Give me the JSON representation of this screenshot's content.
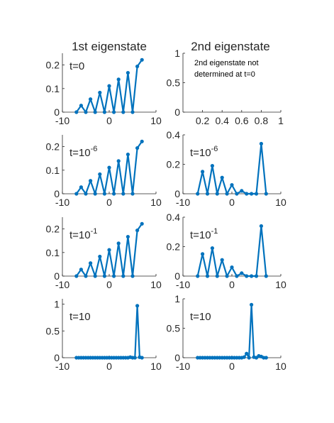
{
  "figure": {
    "col_titles": [
      "1st eigenstate",
      "2nd eigenstate"
    ],
    "series_color": "#0072BD"
  },
  "chart_data": [
    {
      "panel": "r0c0",
      "type": "line",
      "marker": "dot",
      "xlim": [
        -10,
        10
      ],
      "ylim": [
        0,
        0.25
      ],
      "xticks": [
        "-10",
        "0",
        "10"
      ],
      "yticks": [
        {
          "v": 0,
          "l": "0"
        },
        {
          "v": 0.1,
          "l": "0.1"
        },
        {
          "v": 0.2,
          "l": "0.2"
        }
      ],
      "annotation": {
        "text": "t=0",
        "sup": ""
      },
      "x": [
        -7,
        -6,
        -5,
        -4,
        -3,
        -2,
        -1,
        0,
        1,
        2,
        3,
        4,
        5,
        6,
        7
      ],
      "y": [
        0,
        0.028,
        0,
        0.055,
        0,
        0.083,
        0,
        0.111,
        0,
        0.139,
        0,
        0.167,
        0,
        0.194,
        0.222
      ]
    },
    {
      "panel": "r0c1",
      "type": "empty",
      "xlim": [
        0,
        1
      ],
      "ylim": [
        0,
        1
      ],
      "xticks": [
        "0.2",
        "0.4",
        "0.6",
        "0.8",
        "1"
      ],
      "yticks": [
        {
          "v": 0,
          "l": "0"
        },
        {
          "v": 0.5,
          "l": "0.5"
        },
        {
          "v": 1,
          "l": "1"
        }
      ],
      "note": [
        "2nd eigenstate not",
        "determined at t=0"
      ]
    },
    {
      "panel": "r1c0",
      "type": "line",
      "marker": "dot",
      "xlim": [
        -10,
        10
      ],
      "ylim": [
        0,
        0.25
      ],
      "xticks": [
        "-10",
        "0",
        "10"
      ],
      "yticks": [
        {
          "v": 0,
          "l": "0"
        },
        {
          "v": 0.1,
          "l": "0.1"
        },
        {
          "v": 0.2,
          "l": "0.2"
        }
      ],
      "annotation": {
        "text": "t=10",
        "sup": "-6"
      },
      "x": [
        -7,
        -6,
        -5,
        -4,
        -3,
        -2,
        -1,
        0,
        1,
        2,
        3,
        4,
        5,
        6,
        7
      ],
      "y": [
        0,
        0.028,
        0,
        0.055,
        0,
        0.083,
        0,
        0.111,
        0,
        0.139,
        0,
        0.167,
        0,
        0.194,
        0.222
      ]
    },
    {
      "panel": "r1c1",
      "type": "line",
      "marker": "dot",
      "xlim": [
        -10,
        10
      ],
      "ylim": [
        0,
        0.4
      ],
      "xticks": [
        "-10",
        "0",
        "10"
      ],
      "yticks": [
        {
          "v": 0,
          "l": "0"
        },
        {
          "v": 0.2,
          "l": "0.2"
        },
        {
          "v": 0.4,
          "l": "0.4"
        }
      ],
      "annotation": {
        "text": "t=10",
        "sup": "-6"
      },
      "x": [
        -7,
        -6,
        -5,
        -4,
        -3,
        -2,
        -1,
        0,
        1,
        2,
        3,
        4,
        5,
        6,
        7
      ],
      "y": [
        0,
        0.15,
        0,
        0.19,
        0,
        0.11,
        0,
        0.06,
        0,
        0.02,
        0,
        0,
        0,
        0.34,
        0
      ]
    },
    {
      "panel": "r2c0",
      "type": "line",
      "marker": "dot",
      "xlim": [
        -10,
        10
      ],
      "ylim": [
        0,
        0.25
      ],
      "xticks": [
        "-10",
        "0",
        "10"
      ],
      "yticks": [
        {
          "v": 0,
          "l": "0"
        },
        {
          "v": 0.1,
          "l": "0.1"
        },
        {
          "v": 0.2,
          "l": "0.2"
        }
      ],
      "annotation": {
        "text": "t=10",
        "sup": "-1"
      },
      "x": [
        -7,
        -6,
        -5,
        -4,
        -3,
        -2,
        -1,
        0,
        1,
        2,
        3,
        4,
        5,
        6,
        7
      ],
      "y": [
        0,
        0.028,
        0,
        0.055,
        0,
        0.083,
        0,
        0.111,
        0,
        0.139,
        0,
        0.167,
        0,
        0.194,
        0.222
      ]
    },
    {
      "panel": "r2c1",
      "type": "line",
      "marker": "dot",
      "xlim": [
        -10,
        10
      ],
      "ylim": [
        0,
        0.4
      ],
      "xticks": [
        "-10",
        "0",
        "10"
      ],
      "yticks": [
        {
          "v": 0,
          "l": "0"
        },
        {
          "v": 0.2,
          "l": "0.2"
        },
        {
          "v": 0.4,
          "l": "0.4"
        }
      ],
      "annotation": {
        "text": "t=10",
        "sup": "-1"
      },
      "x": [
        -7,
        -6,
        -5,
        -4,
        -3,
        -2,
        -1,
        0,
        1,
        2,
        3,
        4,
        5,
        6,
        7
      ],
      "y": [
        0,
        0.15,
        0,
        0.19,
        0,
        0.11,
        0,
        0.06,
        0,
        0.02,
        0,
        0,
        0,
        0.34,
        0
      ]
    },
    {
      "panel": "r3c0",
      "type": "line",
      "marker": "dot",
      "xlim": [
        -10,
        10
      ],
      "ylim": [
        0,
        1.1
      ],
      "xticks": [
        "-10",
        "0",
        "10"
      ],
      "yticks": [
        {
          "v": 0,
          "l": "0"
        },
        {
          "v": 0.5,
          "l": "0.5"
        },
        {
          "v": 1,
          "l": "1"
        }
      ],
      "annotation": {
        "text": "t=10",
        "sup": ""
      },
      "x": [
        -7,
        -6.5,
        -6,
        -5.5,
        -5,
        -4.5,
        -4,
        -3.5,
        -3,
        -2.5,
        -2,
        -1.5,
        -1,
        -0.5,
        0,
        0.5,
        1,
        1.5,
        2,
        2.5,
        3,
        3.5,
        4,
        4.5,
        5,
        5.5,
        6,
        6.5,
        7
      ],
      "y": [
        0,
        0,
        0,
        0,
        0,
        0,
        0,
        0,
        0,
        0,
        0,
        0,
        0,
        0,
        0,
        0,
        0,
        0,
        0,
        0,
        0,
        0,
        0,
        0.01,
        0,
        0,
        0.97,
        0.01,
        0
      ]
    },
    {
      "panel": "r3c1",
      "type": "line",
      "marker": "dot",
      "xlim": [
        -10,
        10
      ],
      "ylim": [
        0,
        1
      ],
      "xticks": [
        "-10",
        "0",
        "10"
      ],
      "yticks": [
        {
          "v": 0,
          "l": "0"
        },
        {
          "v": 0.5,
          "l": "0.5"
        },
        {
          "v": 1,
          "l": "1"
        }
      ],
      "annotation": {
        "text": "t=10",
        "sup": ""
      },
      "x": [
        -7,
        -6.5,
        -6,
        -5.5,
        -5,
        -4.5,
        -4,
        -3.5,
        -3,
        -2.5,
        -2,
        -1.5,
        -1,
        -0.5,
        0,
        0.5,
        1,
        1.5,
        2,
        2.5,
        3,
        3.5,
        4,
        4.5,
        5,
        5.5,
        6,
        6.5,
        7
      ],
      "y": [
        0,
        0,
        0,
        0,
        0,
        0,
        0,
        0,
        0,
        0,
        0,
        0,
        0,
        0,
        0,
        0,
        0,
        0,
        0,
        0.01,
        0.07,
        0,
        0.9,
        0.01,
        0,
        0.03,
        0.02,
        0,
        0
      ]
    }
  ]
}
